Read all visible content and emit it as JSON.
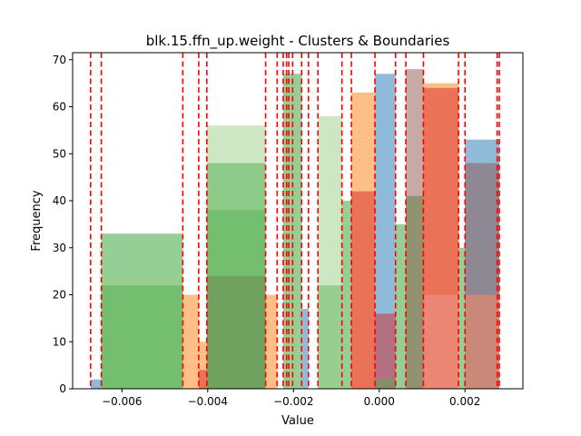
{
  "chart_data": {
    "type": "bar",
    "title": "blk.15.ffn_up.weight - Clusters & Boundaries",
    "xlabel": "Value",
    "ylabel": "Frequency",
    "xlim": [
      -0.00715,
      0.00335
    ],
    "ylim": [
      0,
      71.5
    ],
    "xticks": [
      {
        "value": -0.006,
        "label": "−0.006"
      },
      {
        "value": -0.004,
        "label": "−0.004"
      },
      {
        "value": -0.002,
        "label": "−0.002"
      },
      {
        "value": 0.0,
        "label": "0.000"
      },
      {
        "value": 0.002,
        "label": "0.002"
      }
    ],
    "yticks": [
      {
        "value": 0,
        "label": "0"
      },
      {
        "value": 10,
        "label": "10"
      },
      {
        "value": 20,
        "label": "20"
      },
      {
        "value": 30,
        "label": "30"
      },
      {
        "value": 40,
        "label": "40"
      },
      {
        "value": 50,
        "label": "50"
      },
      {
        "value": 60,
        "label": "60"
      },
      {
        "value": 70,
        "label": "70"
      }
    ],
    "grid": false,
    "histogram_alpha": 0.5,
    "boundary_color": "#ff0000",
    "boundaries": [
      -0.00673,
      -0.00648,
      -0.00458,
      -0.00421,
      -0.00402,
      -0.00265,
      -0.00238,
      -0.00224,
      -0.00216,
      -0.00211,
      -0.00202,
      -0.00181,
      -0.00165,
      -0.00143,
      -0.00087,
      -0.00065,
      -0.0001,
      0.00038,
      0.00062,
      0.00103,
      0.00185,
      0.002,
      0.00275,
      0.0028
    ],
    "series": [
      {
        "color": "#1f77b4",
        "bins": [
          {
            "x0": -0.00673,
            "x1": -0.00648,
            "count": 2
          },
          {
            "x0": -0.00181,
            "x1": -0.00165,
            "count": 17
          },
          {
            "x0": -0.0001,
            "x1": 0.00038,
            "count": 67
          },
          {
            "x0": 0.002,
            "x1": 0.0028,
            "count": 53
          }
        ]
      },
      {
        "color": "#ff7f0e",
        "bins": [
          {
            "x0": -0.00458,
            "x1": -0.00421,
            "count": 20
          },
          {
            "x0": -0.00421,
            "x1": -0.00402,
            "count": 10
          },
          {
            "x0": -0.00265,
            "x1": -0.00238,
            "count": 20
          },
          {
            "x0": -0.00065,
            "x1": -0.0001,
            "count": 63
          },
          {
            "x0": 0.00103,
            "x1": 0.00185,
            "count": 65
          },
          {
            "x0": 0.002,
            "x1": 0.0028,
            "count": 20
          }
        ]
      },
      {
        "color": "#2ca02c",
        "bins": [
          {
            "x0": -0.00648,
            "x1": -0.00458,
            "count": 33
          },
          {
            "x0": -0.00402,
            "x1": -0.00265,
            "count": 38
          },
          {
            "x0": -0.00224,
            "x1": -0.00181,
            "count": 67
          },
          {
            "x0": -0.00143,
            "x1": -0.00087,
            "count": 22
          },
          {
            "x0": -0.00087,
            "x1": -0.00065,
            "count": 40
          },
          {
            "x0": 0.00038,
            "x1": 0.00062,
            "count": 35
          },
          {
            "x0": 0.00062,
            "x1": 0.00103,
            "count": 41
          },
          {
            "x0": 0.00185,
            "x1": 0.002,
            "count": 30
          }
        ]
      },
      {
        "color": "#d62728",
        "bins": [
          {
            "x0": -0.00421,
            "x1": -0.00402,
            "count": 4
          },
          {
            "x0": -0.00065,
            "x1": -0.0001,
            "count": 42
          },
          {
            "x0": -0.0001,
            "x1": 0.00038,
            "count": 16
          },
          {
            "x0": 0.00103,
            "x1": 0.00185,
            "count": 64
          }
        ]
      },
      {
        "color": "#9ccf88",
        "bins": [
          {
            "x0": -0.00648,
            "x1": -0.00458,
            "count": 24
          },
          {
            "x0": -0.00402,
            "x1": -0.00265,
            "count": 56
          },
          {
            "x0": -0.00143,
            "x1": -0.00087,
            "count": 58
          }
        ]
      },
      {
        "color": "#8c564b",
        "bins": [
          {
            "x0": -0.00402,
            "x1": -0.00265,
            "count": 24
          },
          {
            "x0": 0.00062,
            "x1": 0.00103,
            "count": 68
          },
          {
            "x0": 0.002,
            "x1": 0.0028,
            "count": 48
          }
        ]
      },
      {
        "color": "#ec9a92",
        "bins": [
          {
            "x0": 0.00103,
            "x1": 0.00185,
            "count": 20
          },
          {
            "x0": 0.002,
            "x1": 0.0028,
            "count": 20
          }
        ]
      },
      {
        "color": "#4fb04f",
        "bins": [
          {
            "x0": -0.00648,
            "x1": -0.00458,
            "count": 22
          },
          {
            "x0": -0.00402,
            "x1": -0.00265,
            "count": 48
          },
          {
            "x0": -0.0001,
            "x1": 0.00038,
            "count": 2
          }
        ]
      }
    ]
  }
}
